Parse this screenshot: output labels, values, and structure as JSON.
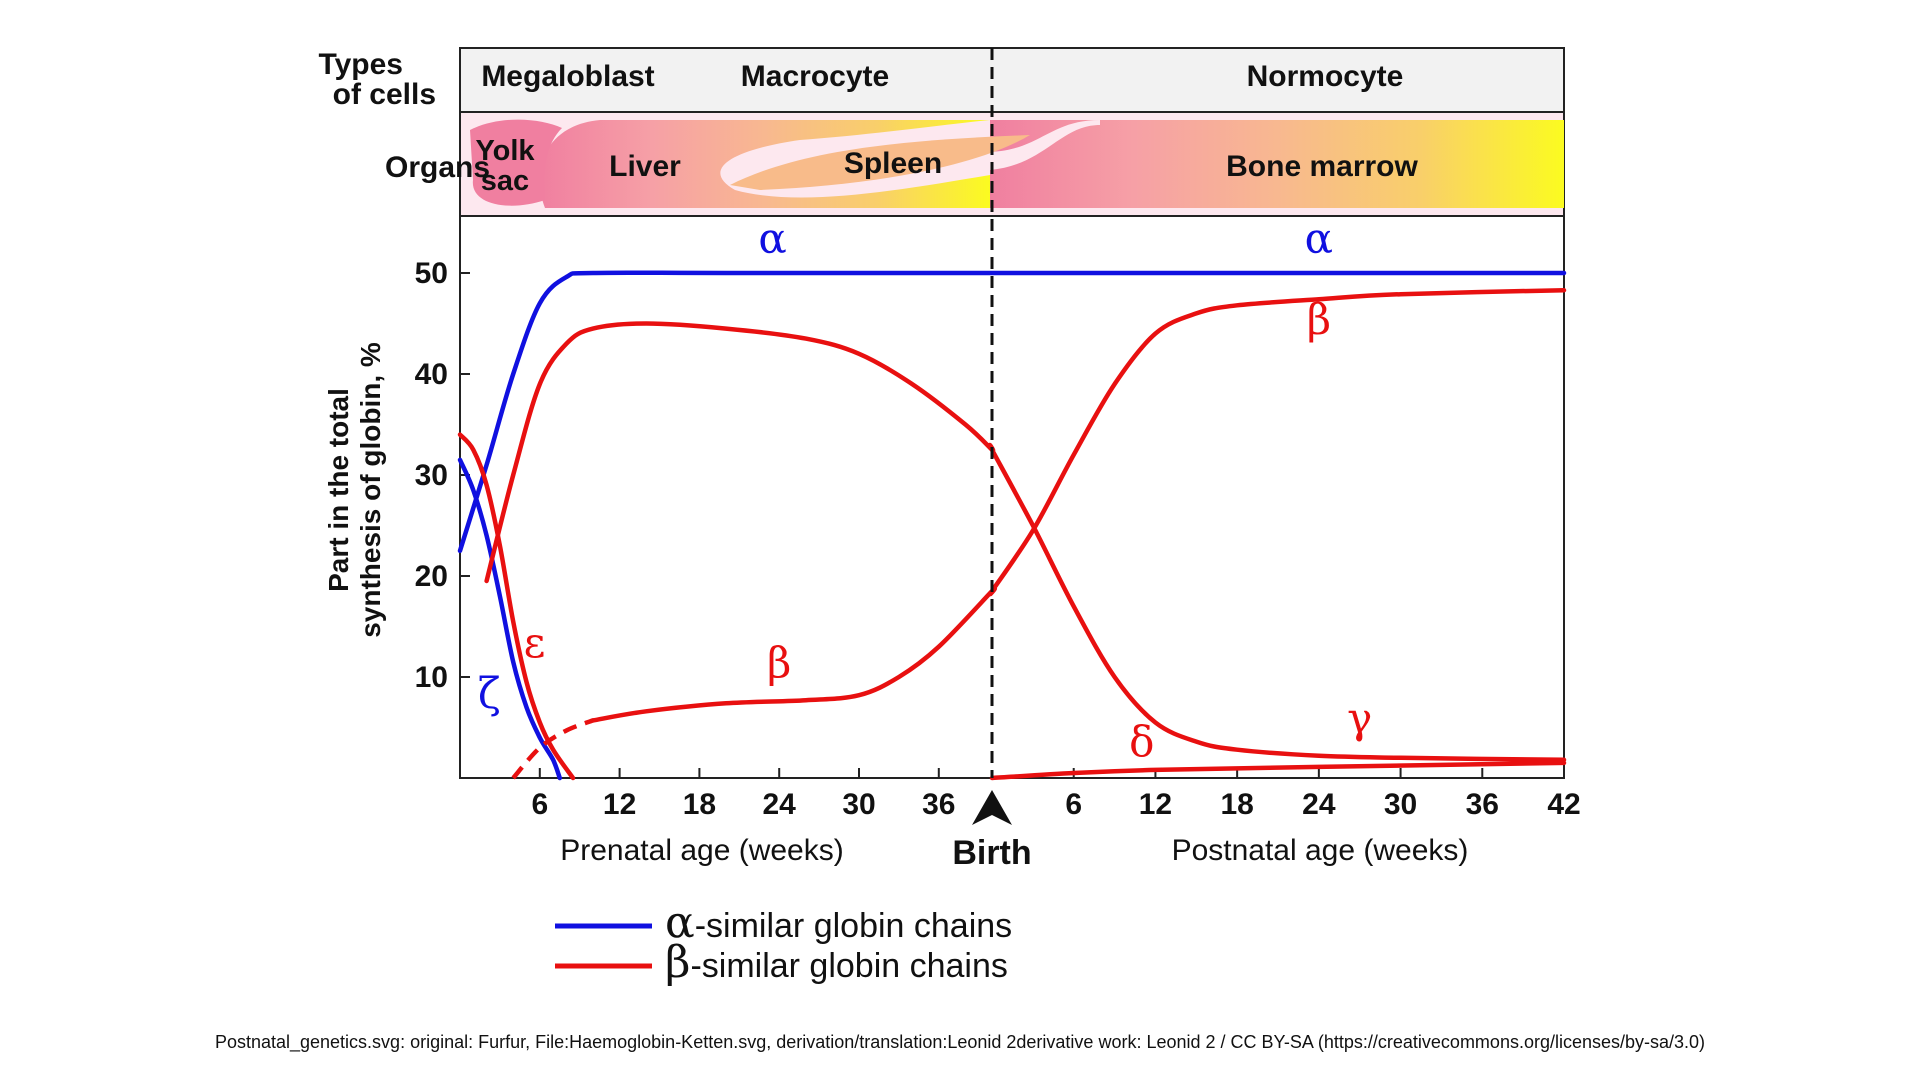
{
  "header": {
    "types_label_line1": "Types",
    "types_label_line2": "of cells",
    "organs_label": "Organs",
    "cell_types": [
      "Megaloblast",
      "Macrocyte",
      "Normocyte"
    ],
    "organs": {
      "yolk_line1": "Yolk",
      "yolk_line2": "sac",
      "liver": "Liver",
      "spleen": "Spleen",
      "bone_marrow": "Bone marrow"
    }
  },
  "axis": {
    "y_title_line1": "Part in the total",
    "y_title_line2": "synthesis of globin, %",
    "prenatal_title": "Prenatal age (weeks)",
    "postnatal_title": "Postnatal age (weeks)",
    "birth_label": "Birth"
  },
  "legend": {
    "alpha_symbol": "α",
    "alpha_text": "-similar globin chains",
    "beta_symbol": "β",
    "beta_text": "-similar globin chains"
  },
  "colors": {
    "alpha": "#1010e0",
    "beta": "#e81010"
  },
  "chart_data": {
    "type": "line",
    "ylim": [
      0,
      55
    ],
    "y_ticks": [
      10,
      20,
      30,
      40,
      50
    ],
    "prenatal_ticks": [
      6,
      12,
      18,
      24,
      30,
      36
    ],
    "postnatal_ticks": [
      6,
      12,
      18,
      24,
      30,
      36,
      42
    ],
    "prenatal_range": [
      0,
      40
    ],
    "postnatal_range": [
      0,
      42
    ],
    "series": [
      {
        "name": "α",
        "color": "#1010e0",
        "labels": [
          {
            "period": "prenatal",
            "x": 23.5,
            "y": 52
          },
          {
            "period": "postnatal",
            "x": 24,
            "y": 52
          }
        ],
        "points": [
          {
            "period": "prenatal",
            "x": 0,
            "y": 22.5
          },
          {
            "period": "prenatal",
            "x": 2,
            "y": 31
          },
          {
            "period": "prenatal",
            "x": 4,
            "y": 40
          },
          {
            "period": "prenatal",
            "x": 6,
            "y": 47
          },
          {
            "period": "prenatal",
            "x": 8,
            "y": 49.6
          },
          {
            "period": "prenatal",
            "x": 10,
            "y": 50
          },
          {
            "period": "prenatal",
            "x": 20,
            "y": 50
          },
          {
            "period": "prenatal",
            "x": 40,
            "y": 50
          },
          {
            "period": "postnatal",
            "x": 0,
            "y": 50
          },
          {
            "period": "postnatal",
            "x": 42,
            "y": 50
          }
        ]
      },
      {
        "name": "ζ",
        "color": "#1010e0",
        "labels": [
          {
            "period": "prenatal",
            "x": 2.2,
            "y": 7
          }
        ],
        "points": [
          {
            "period": "prenatal",
            "x": 0,
            "y": 31.5
          },
          {
            "period": "prenatal",
            "x": 1,
            "y": 28.5
          },
          {
            "period": "prenatal",
            "x": 2,
            "y": 24
          },
          {
            "period": "prenatal",
            "x": 3,
            "y": 18
          },
          {
            "period": "prenatal",
            "x": 4,
            "y": 11.5
          },
          {
            "period": "prenatal",
            "x": 5,
            "y": 7
          },
          {
            "period": "prenatal",
            "x": 6,
            "y": 4
          },
          {
            "period": "prenatal",
            "x": 7,
            "y": 1.8
          },
          {
            "period": "prenatal",
            "x": 7.5,
            "y": 0
          }
        ]
      },
      {
        "name": "ε",
        "color": "#e81010",
        "labels": [
          {
            "period": "prenatal",
            "x": 5.6,
            "y": 12
          }
        ],
        "points": [
          {
            "period": "prenatal",
            "x": 0,
            "y": 34
          },
          {
            "period": "prenatal",
            "x": 1,
            "y": 32.5
          },
          {
            "period": "prenatal",
            "x": 2,
            "y": 29
          },
          {
            "period": "prenatal",
            "x": 3,
            "y": 23
          },
          {
            "period": "prenatal",
            "x": 4,
            "y": 15.5
          },
          {
            "period": "prenatal",
            "x": 5,
            "y": 9.5
          },
          {
            "period": "prenatal",
            "x": 6,
            "y": 5.5
          },
          {
            "period": "prenatal",
            "x": 7,
            "y": 2.8
          },
          {
            "period": "prenatal",
            "x": 8.5,
            "y": 0
          }
        ]
      },
      {
        "name": "γ",
        "color": "#e81010",
        "labels": [
          {
            "period": "postnatal",
            "x": 27,
            "y": 4.5
          }
        ],
        "points": [
          {
            "period": "prenatal",
            "x": 2,
            "y": 19.5
          },
          {
            "period": "prenatal",
            "x": 4,
            "y": 30
          },
          {
            "period": "prenatal",
            "x": 6,
            "y": 39
          },
          {
            "period": "prenatal",
            "x": 8,
            "y": 43
          },
          {
            "period": "prenatal",
            "x": 10,
            "y": 44.5
          },
          {
            "period": "prenatal",
            "x": 14,
            "y": 45
          },
          {
            "period": "prenatal",
            "x": 20,
            "y": 44.5
          },
          {
            "period": "prenatal",
            "x": 26,
            "y": 43.5
          },
          {
            "period": "prenatal",
            "x": 30,
            "y": 42
          },
          {
            "period": "prenatal",
            "x": 34,
            "y": 39
          },
          {
            "period": "prenatal",
            "x": 38,
            "y": 35
          },
          {
            "period": "prenatal",
            "x": 40,
            "y": 32.5
          },
          {
            "period": "postnatal",
            "x": 0,
            "y": 32.5
          },
          {
            "period": "postnatal",
            "x": 3,
            "y": 25
          },
          {
            "period": "postnatal",
            "x": 6,
            "y": 17
          },
          {
            "period": "postnatal",
            "x": 9,
            "y": 10
          },
          {
            "period": "postnatal",
            "x": 12,
            "y": 5.5
          },
          {
            "period": "postnatal",
            "x": 15,
            "y": 3.6
          },
          {
            "period": "postnatal",
            "x": 18,
            "y": 2.8
          },
          {
            "period": "postnatal",
            "x": 24,
            "y": 2.2
          },
          {
            "period": "postnatal",
            "x": 30,
            "y": 2
          },
          {
            "period": "postnatal",
            "x": 42,
            "y": 1.8
          }
        ]
      },
      {
        "name": "β",
        "color": "#e81010",
        "labels": [
          {
            "period": "prenatal",
            "x": 24,
            "y": 10
          },
          {
            "period": "postnatal",
            "x": 24,
            "y": 44
          }
        ],
        "dashed_points": [
          {
            "period": "prenatal",
            "x": 4,
            "y": 0
          },
          {
            "period": "prenatal",
            "x": 6,
            "y": 3
          },
          {
            "period": "prenatal",
            "x": 8,
            "y": 4.7
          },
          {
            "period": "prenatal",
            "x": 10,
            "y": 5.7
          }
        ],
        "points": [
          {
            "period": "prenatal",
            "x": 10,
            "y": 5.7
          },
          {
            "period": "prenatal",
            "x": 14,
            "y": 6.6
          },
          {
            "period": "prenatal",
            "x": 20,
            "y": 7.4
          },
          {
            "period": "prenatal",
            "x": 26,
            "y": 7.7
          },
          {
            "period": "prenatal",
            "x": 30,
            "y": 8.2
          },
          {
            "period": "prenatal",
            "x": 33,
            "y": 10
          },
          {
            "period": "prenatal",
            "x": 36,
            "y": 13
          },
          {
            "period": "prenatal",
            "x": 40,
            "y": 18.5
          },
          {
            "period": "postnatal",
            "x": 0,
            "y": 18.5
          },
          {
            "period": "postnatal",
            "x": 3,
            "y": 24.5
          },
          {
            "period": "postnatal",
            "x": 6,
            "y": 32
          },
          {
            "period": "postnatal",
            "x": 9,
            "y": 39
          },
          {
            "period": "postnatal",
            "x": 12,
            "y": 44
          },
          {
            "period": "postnatal",
            "x": 15,
            "y": 46
          },
          {
            "period": "postnatal",
            "x": 18,
            "y": 46.8
          },
          {
            "period": "postnatal",
            "x": 24,
            "y": 47.4
          },
          {
            "period": "postnatal",
            "x": 30,
            "y": 47.9
          },
          {
            "period": "postnatal",
            "x": 42,
            "y": 48.3
          }
        ]
      },
      {
        "name": "δ",
        "color": "#e81010",
        "labels": [
          {
            "period": "postnatal",
            "x": 11,
            "y": 2.2
          }
        ],
        "points": [
          {
            "period": "postnatal",
            "x": 0,
            "y": 0
          },
          {
            "period": "postnatal",
            "x": 6,
            "y": 0.5
          },
          {
            "period": "postnatal",
            "x": 12,
            "y": 0.8
          },
          {
            "period": "postnatal",
            "x": 24,
            "y": 1.1
          },
          {
            "period": "postnatal",
            "x": 42,
            "y": 1.5
          }
        ]
      }
    ]
  },
  "caption": "Postnatal_genetics.svg: original: Furfur, File:Haemoglobin-Ketten.svg, derivation/translation:Leonid 2derivative work: Leonid 2 / CC BY-SA (https://creativecommons.org/licenses/by-sa/3.0)"
}
